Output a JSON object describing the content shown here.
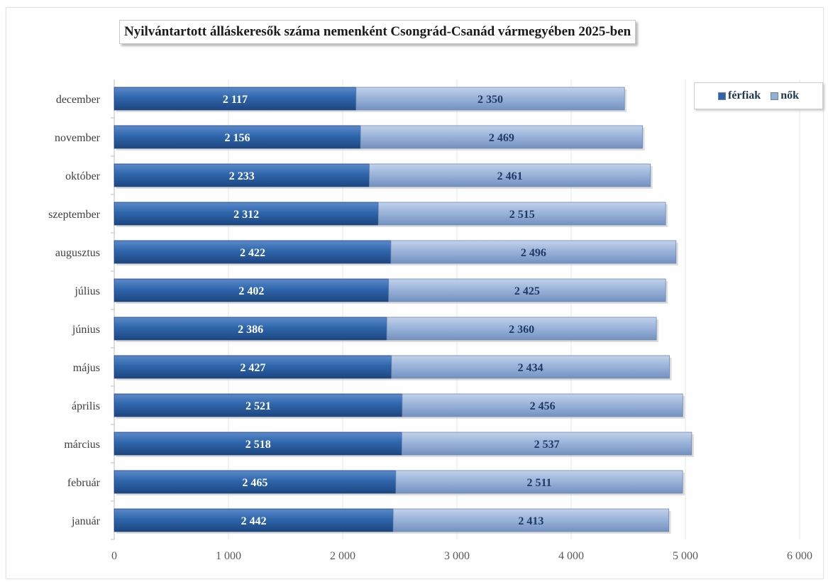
{
  "chart_data": {
    "type": "bar",
    "orientation": "horizontal",
    "stacked": true,
    "title": "Nyilvántartott álláskeresők száma nemenként Csongrád-Csanád vármegyében 2025-ben",
    "categories": [
      "január",
      "február",
      "március",
      "április",
      "május",
      "június",
      "július",
      "augusztus",
      "szeptember",
      "október",
      "november",
      "december"
    ],
    "series": [
      {
        "name": "férfiak",
        "color": "#2e64a8",
        "values": [
          2442,
          2465,
          2518,
          2521,
          2427,
          2386,
          2402,
          2422,
          2312,
          2233,
          2156,
          2117
        ]
      },
      {
        "name": "nők",
        "color": "#94aed6",
        "values": [
          2413,
          2511,
          2537,
          2456,
          2434,
          2360,
          2425,
          2496,
          2515,
          2461,
          2469,
          2350
        ]
      }
    ],
    "xlim": [
      0,
      6000
    ],
    "xticks": [
      0,
      1000,
      2000,
      3000,
      4000,
      5000,
      6000
    ],
    "xtick_labels": [
      "0",
      "1 000",
      "2 000",
      "3 000",
      "4 000",
      "5 000",
      "6 000"
    ],
    "grid": "vertical",
    "legend_position": "top-right"
  }
}
